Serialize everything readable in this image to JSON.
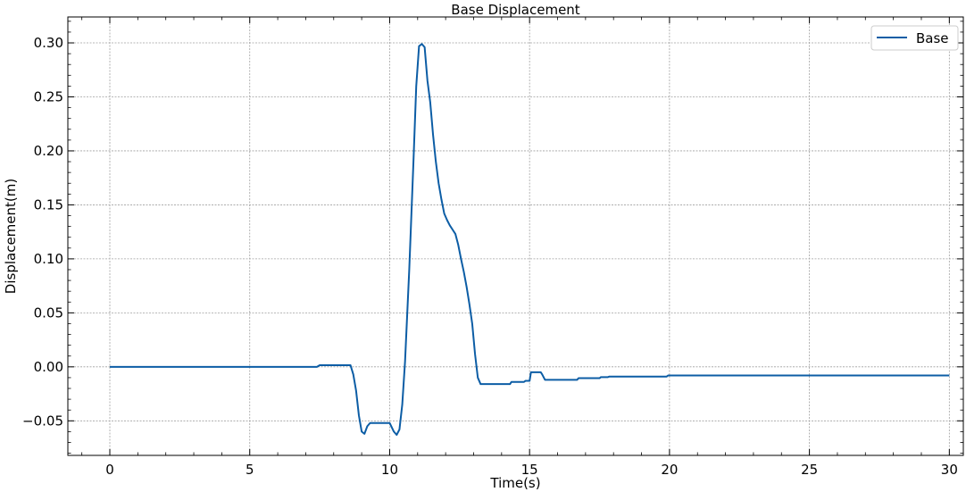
{
  "chart_data": {
    "type": "line",
    "title": "Base Displacement",
    "xlabel": "Time(s)",
    "ylabel": "Displacement(m)",
    "xlim": [
      -1.5,
      30.5
    ],
    "ylim": [
      -0.082,
      0.324
    ],
    "xticks": [
      0,
      5,
      10,
      15,
      20,
      25,
      30
    ],
    "xtick_labels": [
      "0",
      "5",
      "10",
      "15",
      "20",
      "25",
      "30"
    ],
    "yticks": [
      -0.05,
      0.0,
      0.05,
      0.1,
      0.15,
      0.2,
      0.25,
      0.3
    ],
    "ytick_labels": [
      "−0.05",
      "0.00",
      "0.05",
      "0.10",
      "0.15",
      "0.20",
      "0.25",
      "0.30"
    ],
    "grid": true,
    "legend_position": "top-right",
    "series": [
      {
        "name": "Base",
        "color": "#0c5da5",
        "x": [
          0,
          7.4,
          7.5,
          8.6,
          8.7,
          8.8,
          8.9,
          9.0,
          9.1,
          9.2,
          9.3,
          9.4,
          9.5,
          10.0,
          10.15,
          10.25,
          10.35,
          10.45,
          10.55,
          10.7,
          10.85,
          10.95,
          11.05,
          11.15,
          11.25,
          11.35,
          11.45,
          11.55,
          11.65,
          11.75,
          11.85,
          11.95,
          12.05,
          12.15,
          12.25,
          12.35,
          12.45,
          12.55,
          12.65,
          12.75,
          12.85,
          12.95,
          13.05,
          13.15,
          13.25,
          13.35,
          13.45,
          13.55,
          13.65,
          14.3,
          14.35,
          14.8,
          14.85,
          15.0,
          15.05,
          15.4,
          15.45,
          15.55,
          15.6,
          16.7,
          16.75,
          17.5,
          17.55,
          17.8,
          17.85,
          19.9,
          19.95,
          30
        ],
        "y": [
          0,
          0,
          0.0015,
          0.0015,
          -0.007,
          -0.022,
          -0.045,
          -0.06,
          -0.062,
          -0.055,
          -0.052,
          -0.052,
          -0.052,
          -0.052,
          -0.06,
          -0.063,
          -0.058,
          -0.035,
          0.005,
          0.09,
          0.19,
          0.26,
          0.297,
          0.299,
          0.296,
          0.265,
          0.245,
          0.215,
          0.19,
          0.17,
          0.155,
          0.142,
          0.136,
          0.131,
          0.127,
          0.123,
          0.113,
          0.1,
          0.088,
          0.074,
          0.058,
          0.04,
          0.012,
          -0.01,
          -0.016,
          -0.016,
          -0.016,
          -0.016,
          -0.016,
          -0.016,
          -0.014,
          -0.014,
          -0.013,
          -0.013,
          -0.005,
          -0.005,
          -0.007,
          -0.012,
          -0.012,
          -0.012,
          -0.0105,
          -0.0105,
          -0.0095,
          -0.0095,
          -0.009,
          -0.009,
          -0.008,
          -0.008
        ]
      }
    ]
  }
}
